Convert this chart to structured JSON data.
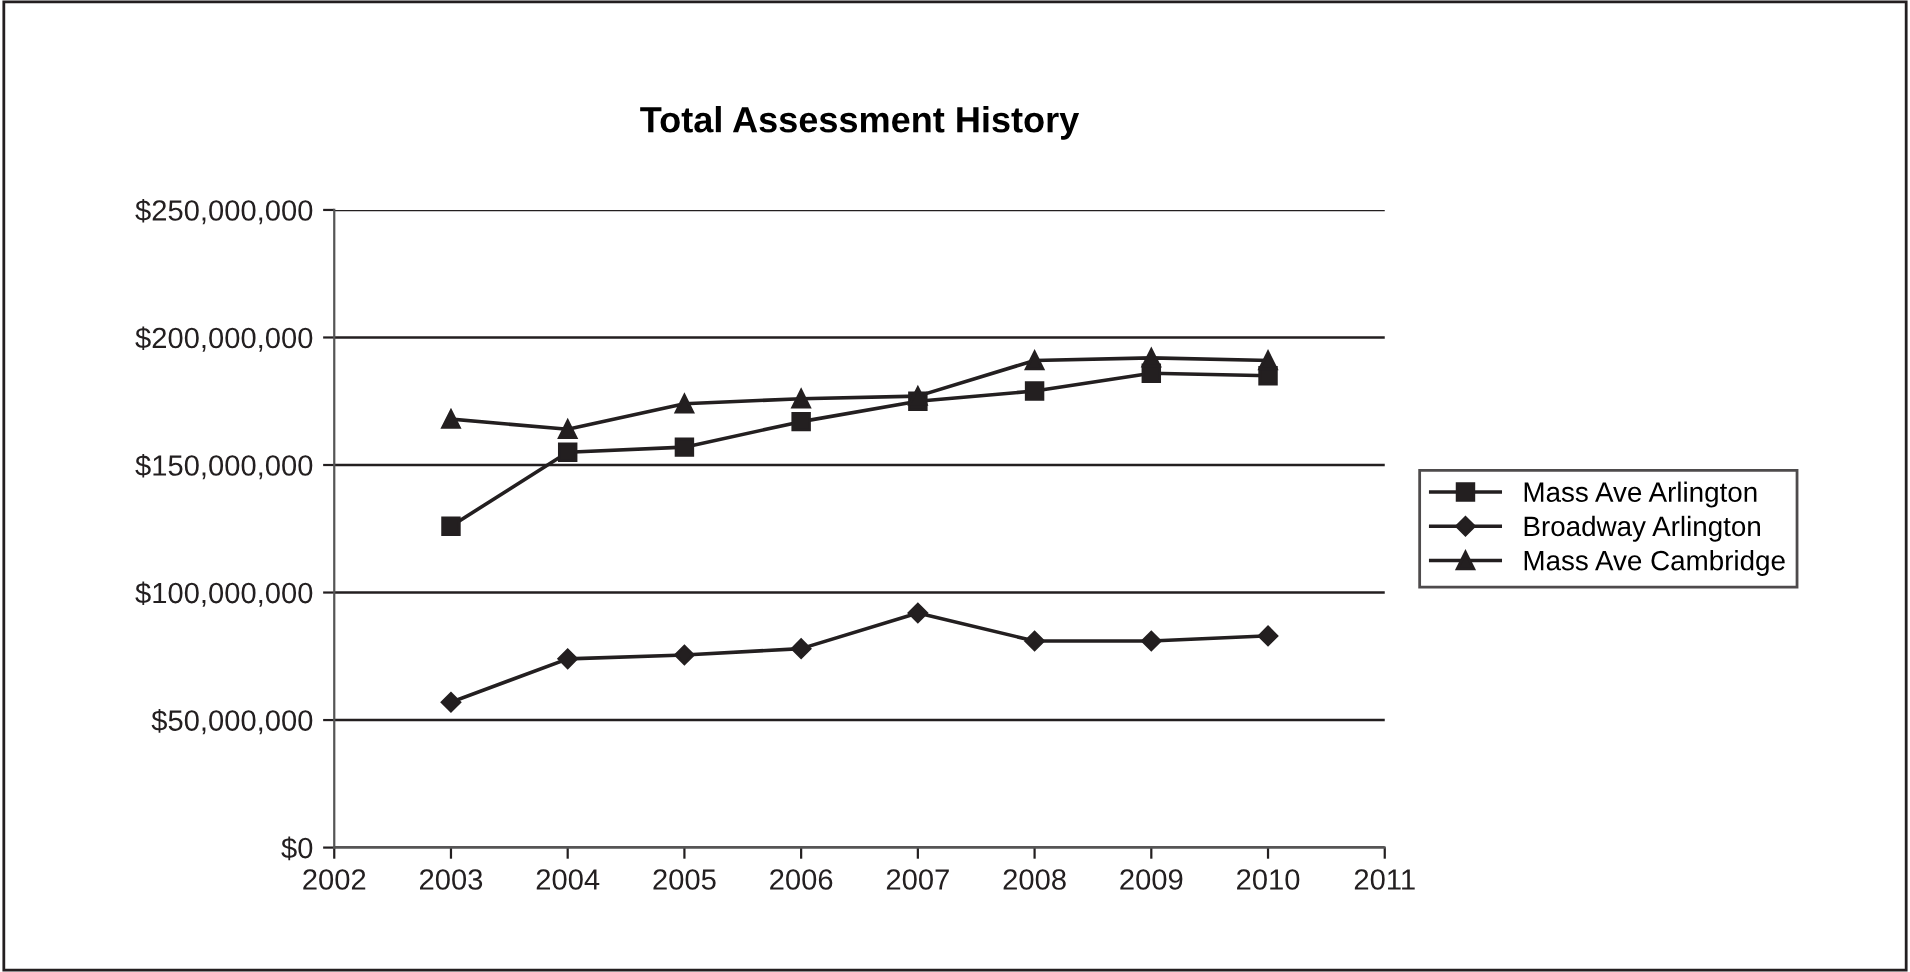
{
  "chart_data": {
    "type": "line",
    "title": "Total Assessment History",
    "x": [
      2003,
      2004,
      2005,
      2006,
      2007,
      2008,
      2009,
      2010
    ],
    "series": [
      {
        "name": "Mass Ave Arlington",
        "color": "#231f20",
        "marker": "square",
        "values": [
          126000000,
          155000000,
          157000000,
          167000000,
          175000000,
          179000000,
          186000000,
          185000000
        ]
      },
      {
        "name": "Broadway Arlington",
        "color": "#231f20",
        "marker": "diamond",
        "values": [
          57000000,
          74000000,
          75500000,
          78000000,
          92000000,
          81000000,
          81000000,
          83000000
        ]
      },
      {
        "name": "Mass Ave Cambridge",
        "color": "#231f20",
        "marker": "triangle",
        "values": [
          168000000,
          164000000,
          174000000,
          176000000,
          177000000,
          191000000,
          192000000,
          191000000
        ]
      }
    ],
    "xlim": [
      2002,
      2011
    ],
    "xticks": [
      2002,
      2003,
      2004,
      2005,
      2006,
      2007,
      2008,
      2009,
      2010,
      2011
    ],
    "ylim": [
      0,
      250000000
    ],
    "yticks": [
      {
        "value": 0,
        "label": "$0"
      },
      {
        "value": 50000000,
        "label": "$50,000,000"
      },
      {
        "value": 100000000,
        "label": "$100,000,000"
      },
      {
        "value": 150000000,
        "label": "$150,000,000"
      },
      {
        "value": 200000000,
        "label": "$200,000,000"
      },
      {
        "value": 250000000,
        "label": "$250,000,000"
      }
    ],
    "grid": "y",
    "legend": "right",
    "line_style": "solid"
  }
}
